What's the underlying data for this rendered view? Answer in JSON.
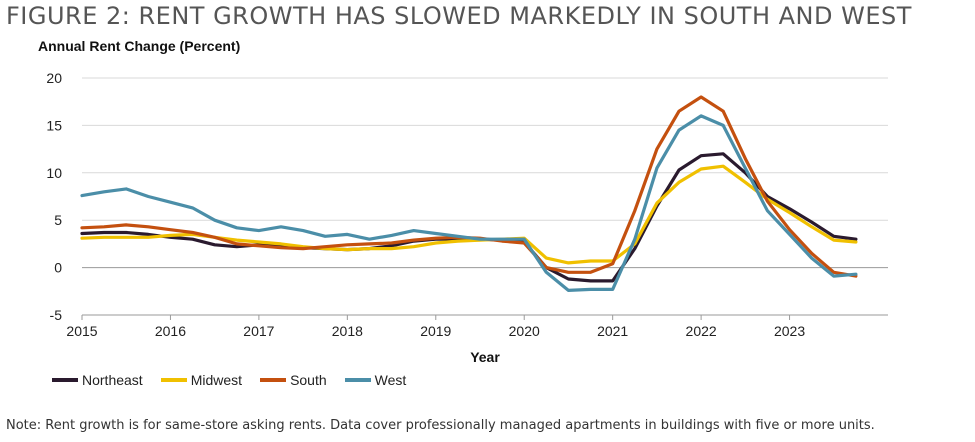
{
  "title": "FIGURE 2: RENT GROWTH HAS SLOWED MARKEDLY IN SOUTH AND WEST",
  "note": "Note: Rent growth is for same-store asking rents. Data cover professionally managed apartments in buildings with five or more units.",
  "chart_data": {
    "type": "line",
    "ylabel": "Annual Rent Change (Percent)",
    "xlabel": "Year",
    "ylim": [
      -5,
      20
    ],
    "xlim": [
      2015,
      2024
    ],
    "yticks": [
      "20",
      "15",
      "10",
      "5",
      "0",
      "-5"
    ],
    "xticks": [
      "2015",
      "2016",
      "2017",
      "2018",
      "2019",
      "2020",
      "2021",
      "2022",
      "2023"
    ],
    "grid": true,
    "legend_position": "bottom",
    "x": [
      2015.0,
      2015.25,
      2015.5,
      2015.75,
      2016.0,
      2016.25,
      2016.5,
      2016.75,
      2017.0,
      2017.25,
      2017.5,
      2017.75,
      2018.0,
      2018.25,
      2018.5,
      2018.75,
      2019.0,
      2019.25,
      2019.5,
      2019.75,
      2020.0,
      2020.25,
      2020.5,
      2020.75,
      2021.0,
      2021.25,
      2021.5,
      2021.75,
      2022.0,
      2022.25,
      2022.5,
      2022.75,
      2023.0,
      2023.25,
      2023.5,
      2023.75
    ],
    "series": [
      {
        "name": "Northeast",
        "color": "#2a1a2e",
        "values": [
          3.6,
          3.7,
          3.7,
          3.5,
          3.2,
          3.0,
          2.4,
          2.2,
          2.4,
          2.2,
          2.1,
          2.0,
          1.9,
          2.0,
          2.3,
          2.8,
          3.0,
          3.0,
          3.0,
          2.9,
          2.7,
          0.0,
          -1.2,
          -1.4,
          -1.4,
          2.0,
          6.5,
          10.3,
          11.8,
          12.0,
          10.0,
          7.5,
          6.2,
          4.8,
          3.3,
          3.0
        ]
      },
      {
        "name": "Midwest",
        "color": "#f0c000",
        "values": [
          3.1,
          3.2,
          3.2,
          3.2,
          3.4,
          3.5,
          3.2,
          2.9,
          2.7,
          2.5,
          2.2,
          2.0,
          1.9,
          2.0,
          2.0,
          2.2,
          2.6,
          2.8,
          2.9,
          3.0,
          3.1,
          1.0,
          0.5,
          0.7,
          0.7,
          2.5,
          6.8,
          9.0,
          10.4,
          10.7,
          9.0,
          7.2,
          5.8,
          4.3,
          2.9,
          2.7
        ]
      },
      {
        "name": "South",
        "color": "#c4500f",
        "values": [
          4.2,
          4.3,
          4.5,
          4.3,
          4.0,
          3.7,
          3.2,
          2.5,
          2.3,
          2.1,
          2.0,
          2.2,
          2.4,
          2.5,
          2.6,
          2.9,
          3.1,
          3.2,
          3.1,
          2.8,
          2.6,
          0.0,
          -0.5,
          -0.5,
          0.4,
          6.0,
          12.5,
          16.5,
          18.0,
          16.5,
          11.5,
          7.0,
          4.0,
          1.5,
          -0.5,
          -0.9
        ]
      },
      {
        "name": "West",
        "color": "#4b8ea8",
        "values": [
          7.6,
          8.0,
          8.3,
          7.5,
          6.9,
          6.3,
          5.0,
          4.2,
          3.9,
          4.3,
          3.9,
          3.3,
          3.5,
          3.0,
          3.4,
          3.9,
          3.6,
          3.3,
          3.0,
          3.0,
          3.0,
          -0.5,
          -2.4,
          -2.3,
          -2.3,
          3.0,
          10.5,
          14.5,
          16.0,
          15.0,
          10.5,
          6.0,
          3.5,
          1.0,
          -0.9,
          -0.7
        ]
      }
    ]
  }
}
